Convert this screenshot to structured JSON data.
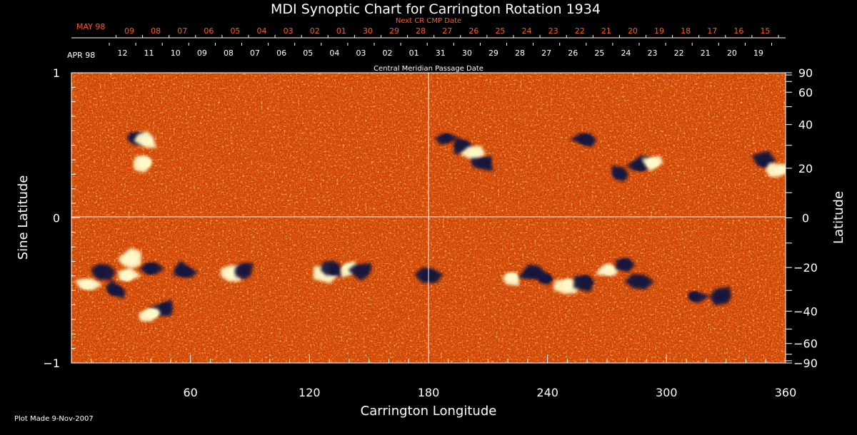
{
  "title": "MDI Synoptic Chart for Carrington Rotation 1934",
  "top_axis": {
    "label": "Next CR CMP Date",
    "month": "MAY 98",
    "dates": [
      "09",
      "08",
      "07",
      "06",
      "05",
      "04",
      "03",
      "02",
      "01",
      "30",
      "29",
      "28",
      "27",
      "26",
      "25",
      "24",
      "23",
      "22",
      "21",
      "20",
      "19",
      "18",
      "17",
      "16",
      "15"
    ]
  },
  "date_axis": {
    "label": "Central Meridian Passage Date",
    "month": "APR 98",
    "dates": [
      "12",
      "11",
      "10",
      "09",
      "08",
      "07",
      "06",
      "05",
      "04",
      "03",
      "02",
      "01",
      "31",
      "30",
      "29",
      "28",
      "27",
      "26",
      "25",
      "24",
      "23",
      "22",
      "21",
      "20",
      "19"
    ]
  },
  "footer": {
    "plot_made": "Plot Made  9-Nov-2007"
  },
  "colors": {
    "background": "#000000",
    "map_base": "#f05a14",
    "map_dark": "#b41e0a",
    "positive_polarity": "#fff8c8",
    "negative_polarity": "#14143c",
    "orange_text": "#ff5a1e",
    "axis": "#ffffff"
  },
  "chart_data": {
    "type": "heatmap",
    "title": "MDI Synoptic Chart for Carrington Rotation 1934",
    "xlabel": "Carrington Longitude",
    "ylabel_left": "Sine Latitude",
    "ylabel_right": "Latitude",
    "xlim": [
      0,
      360
    ],
    "ylim": [
      -1,
      1
    ],
    "x_ticks": [
      60,
      120,
      180,
      240,
      300,
      360
    ],
    "x_tick_labels": [
      "60",
      "120",
      "180",
      "240",
      "300",
      "360"
    ],
    "y_ticks_left": [
      1,
      0,
      -1
    ],
    "y_tick_labels_left": [
      "1",
      "0",
      "−1"
    ],
    "y_ticks_right_degrees": [
      90,
      60,
      40,
      20,
      0,
      -20,
      -40,
      -60,
      -90
    ],
    "y_tick_labels_right": [
      "90",
      "60",
      "40",
      "20",
      "0",
      "−20",
      "−40",
      "−60",
      "−90"
    ],
    "grid_lines": {
      "longitude": [
        180
      ],
      "sine_latitude": [
        0
      ]
    },
    "features": [
      {
        "polarity": "positive",
        "lon": 8,
        "sinlat": -0.46
      },
      {
        "polarity": "negative",
        "lon": 15,
        "sinlat": -0.37
      },
      {
        "polarity": "positive",
        "lon": 28,
        "sinlat": -0.4
      },
      {
        "polarity": "negative",
        "lon": 22,
        "sinlat": -0.5
      },
      {
        "polarity": "positive",
        "lon": 30,
        "sinlat": -0.28
      },
      {
        "polarity": "negative",
        "lon": 40,
        "sinlat": -0.35
      },
      {
        "polarity": "negative",
        "lon": 47,
        "sinlat": -0.62
      },
      {
        "polarity": "positive",
        "lon": 40,
        "sinlat": -0.66
      },
      {
        "polarity": "negative",
        "lon": 57,
        "sinlat": -0.37
      },
      {
        "polarity": "positive",
        "lon": 81,
        "sinlat": -0.38
      },
      {
        "polarity": "negative",
        "lon": 87,
        "sinlat": -0.36
      },
      {
        "polarity": "positive",
        "lon": 128,
        "sinlat": -0.38
      },
      {
        "polarity": "negative",
        "lon": 132,
        "sinlat": -0.36
      },
      {
        "polarity": "positive",
        "lon": 140,
        "sinlat": -0.35
      },
      {
        "polarity": "negative",
        "lon": 146,
        "sinlat": -0.36
      },
      {
        "polarity": "negative",
        "lon": 180,
        "sinlat": -0.39
      },
      {
        "polarity": "positive",
        "lon": 222,
        "sinlat": -0.41
      },
      {
        "polarity": "negative",
        "lon": 232,
        "sinlat": -0.38
      },
      {
        "polarity": "negative",
        "lon": 239,
        "sinlat": -0.42
      },
      {
        "polarity": "positive",
        "lon": 250,
        "sinlat": -0.46
      },
      {
        "polarity": "negative",
        "lon": 259,
        "sinlat": -0.44
      },
      {
        "polarity": "positive",
        "lon": 271,
        "sinlat": -0.36
      },
      {
        "polarity": "negative",
        "lon": 279,
        "sinlat": -0.32
      },
      {
        "polarity": "negative",
        "lon": 286,
        "sinlat": -0.44
      },
      {
        "polarity": "negative",
        "lon": 314,
        "sinlat": -0.54
      },
      {
        "polarity": "negative",
        "lon": 328,
        "sinlat": -0.54
      },
      {
        "polarity": "negative",
        "lon": 34,
        "sinlat": 0.55
      },
      {
        "polarity": "positive",
        "lon": 38,
        "sinlat": 0.53
      },
      {
        "polarity": "positive",
        "lon": 37,
        "sinlat": 0.38
      },
      {
        "polarity": "negative",
        "lon": 189,
        "sinlat": 0.55
      },
      {
        "polarity": "negative",
        "lon": 197,
        "sinlat": 0.5
      },
      {
        "polarity": "positive",
        "lon": 203,
        "sinlat": 0.44
      },
      {
        "polarity": "negative",
        "lon": 208,
        "sinlat": 0.38
      },
      {
        "polarity": "negative",
        "lon": 259,
        "sinlat": 0.54
      },
      {
        "polarity": "negative",
        "lon": 276,
        "sinlat": 0.3
      },
      {
        "polarity": "negative",
        "lon": 287,
        "sinlat": 0.36
      },
      {
        "polarity": "positive",
        "lon": 293,
        "sinlat": 0.38
      },
      {
        "polarity": "negative",
        "lon": 349,
        "sinlat": 0.39
      },
      {
        "polarity": "positive",
        "lon": 357,
        "sinlat": 0.33
      }
    ]
  }
}
